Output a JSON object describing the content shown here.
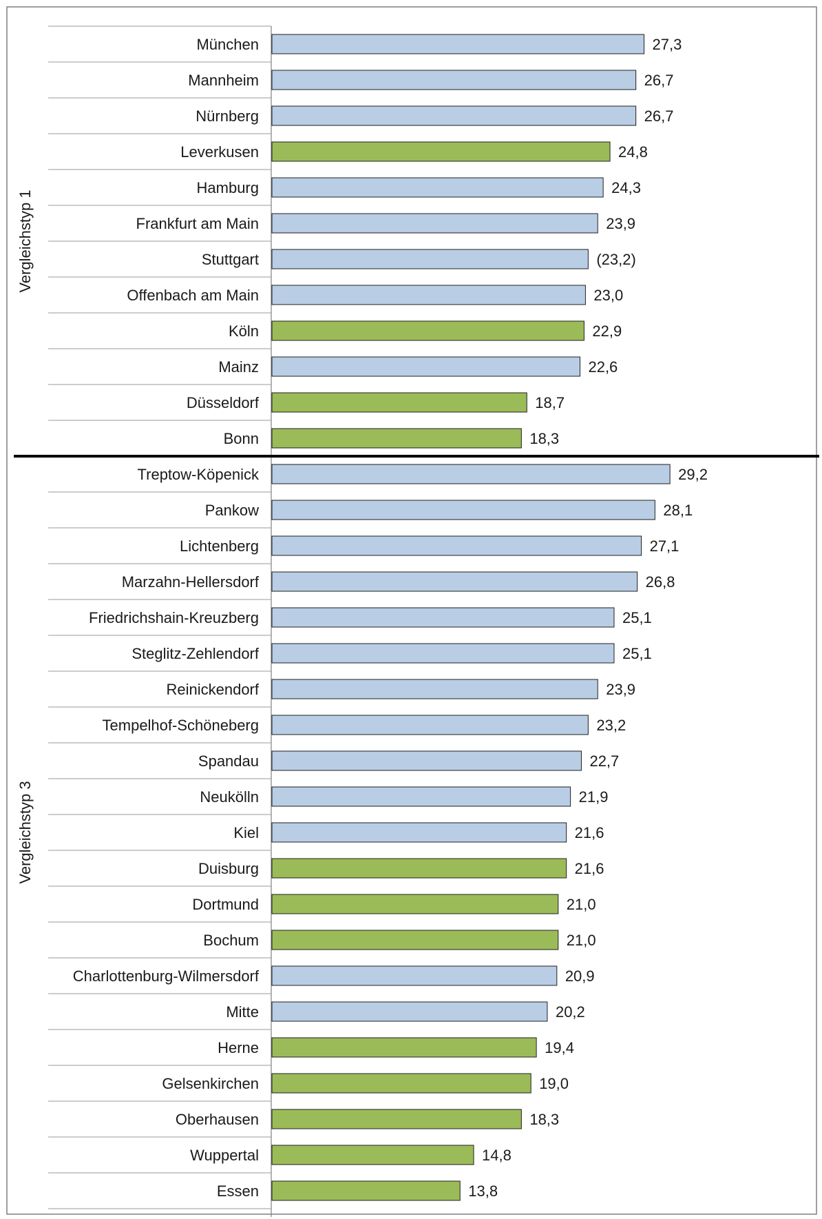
{
  "chart_data": {
    "type": "bar",
    "orientation": "horizontal",
    "title": "",
    "xlabel": "",
    "ylabel": "",
    "xlim": [
      0,
      33
    ],
    "grid": false,
    "legend": "none",
    "colors": {
      "blue": "#b9cde5",
      "green": "#9bbb59",
      "border": "#1f1f1f"
    },
    "groups": [
      {
        "label": "Vergleichstyp 1",
        "bars": [
          {
            "category": "München",
            "value": 27.3,
            "label": "27,3",
            "color": "blue"
          },
          {
            "category": "Mannheim",
            "value": 26.7,
            "label": "26,7",
            "color": "blue"
          },
          {
            "category": "Nürnberg",
            "value": 26.7,
            "label": "26,7",
            "color": "blue"
          },
          {
            "category": "Leverkusen",
            "value": 24.8,
            "label": "24,8",
            "color": "green"
          },
          {
            "category": "Hamburg",
            "value": 24.3,
            "label": "24,3",
            "color": "blue"
          },
          {
            "category": "Frankfurt am Main",
            "value": 23.9,
            "label": "23,9",
            "color": "blue"
          },
          {
            "category": "Stuttgart",
            "value": 23.2,
            "label": "(23,2)",
            "color": "blue"
          },
          {
            "category": "Offenbach am Main",
            "value": 23.0,
            "label": "23,0",
            "color": "blue"
          },
          {
            "category": "Köln",
            "value": 22.9,
            "label": "22,9",
            "color": "green"
          },
          {
            "category": "Mainz",
            "value": 22.6,
            "label": "22,6",
            "color": "blue"
          },
          {
            "category": "Düsseldorf",
            "value": 18.7,
            "label": "18,7",
            "color": "green"
          },
          {
            "category": "Bonn",
            "value": 18.3,
            "label": "18,3",
            "color": "green"
          }
        ]
      },
      {
        "label": "Vergleichstyp 3",
        "bars": [
          {
            "category": "Treptow-Köpenick",
            "value": 29.2,
            "label": "29,2",
            "color": "blue"
          },
          {
            "category": "Pankow",
            "value": 28.1,
            "label": "28,1",
            "color": "blue"
          },
          {
            "category": "Lichtenberg",
            "value": 27.1,
            "label": "27,1",
            "color": "blue"
          },
          {
            "category": "Marzahn-Hellersdorf",
            "value": 26.8,
            "label": "26,8",
            "color": "blue"
          },
          {
            "category": "Friedrichshain-Kreuzberg",
            "value": 25.1,
            "label": "25,1",
            "color": "blue"
          },
          {
            "category": "Steglitz-Zehlendorf",
            "value": 25.1,
            "label": "25,1",
            "color": "blue"
          },
          {
            "category": "Reinickendorf",
            "value": 23.9,
            "label": "23,9",
            "color": "blue"
          },
          {
            "category": "Tempelhof-Schöneberg",
            "value": 23.2,
            "label": "23,2",
            "color": "blue"
          },
          {
            "category": "Spandau",
            "value": 22.7,
            "label": "22,7",
            "color": "blue"
          },
          {
            "category": "Neukölln",
            "value": 21.9,
            "label": "21,9",
            "color": "blue"
          },
          {
            "category": "Kiel",
            "value": 21.6,
            "label": "21,6",
            "color": "blue"
          },
          {
            "category": "Duisburg",
            "value": 21.6,
            "label": "21,6",
            "color": "green"
          },
          {
            "category": "Dortmund",
            "value": 21.0,
            "label": "21,0",
            "color": "green"
          },
          {
            "category": "Bochum",
            "value": 21.0,
            "label": "21,0",
            "color": "green"
          },
          {
            "category": "Charlottenburg-Wilmersdorf",
            "value": 20.9,
            "label": "20,9",
            "color": "blue"
          },
          {
            "category": "Mitte",
            "value": 20.2,
            "label": "20,2",
            "color": "blue"
          },
          {
            "category": "Herne",
            "value": 19.4,
            "label": "19,4",
            "color": "green"
          },
          {
            "category": "Gelsenkirchen",
            "value": 19.0,
            "label": "19,0",
            "color": "green"
          },
          {
            "category": "Oberhausen",
            "value": 18.3,
            "label": "18,3",
            "color": "green"
          },
          {
            "category": "Wuppertal",
            "value": 14.8,
            "label": "14,8",
            "color": "green"
          },
          {
            "category": "Essen",
            "value": 13.8,
            "label": "13,8",
            "color": "green"
          }
        ]
      }
    ]
  }
}
